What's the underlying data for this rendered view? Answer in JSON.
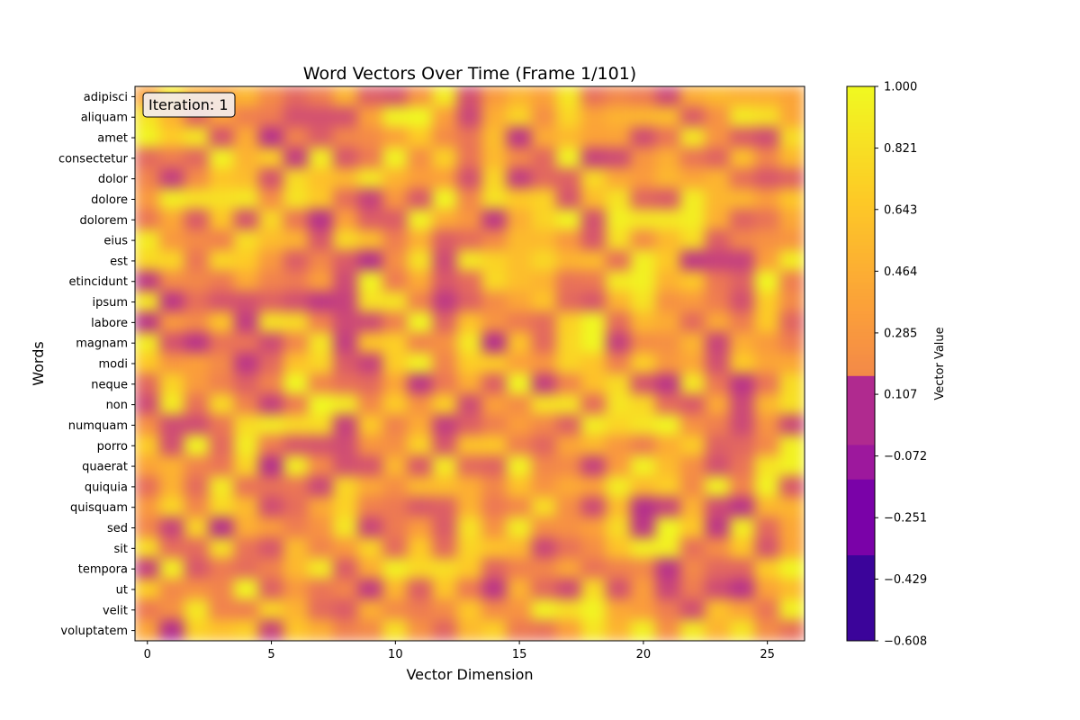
{
  "chart_data": {
    "type": "heatmap",
    "title": "Word Vectors Over Time (Frame 1/101)",
    "xlabel": "Vector Dimension",
    "ylabel": "Words",
    "x_ticks": [
      "0",
      "5",
      "10",
      "15",
      "20",
      "25"
    ],
    "x_tick_values": [
      0,
      5,
      10,
      15,
      20,
      25
    ],
    "xlim": [
      -0.5,
      26.5
    ],
    "words": [
      "adipisci",
      "aliquam",
      "amet",
      "consectetur",
      "dolor",
      "dolore",
      "dolorem",
      "eius",
      "est",
      "etincidunt",
      "ipsum",
      "labore",
      "magnam",
      "modi",
      "neque",
      "non",
      "numquam",
      "porro",
      "quaerat",
      "quiquia",
      "quisquam",
      "sed",
      "sit",
      "tempora",
      "ut",
      "velit",
      "voluptatem"
    ],
    "dimensions": 27,
    "colorbar": {
      "label": "Vector Value",
      "min": -0.608,
      "max": 1.0,
      "ticks": [
        "1.000",
        "0.821",
        "0.643",
        "0.464",
        "0.285",
        "0.107",
        "−0.072",
        "−0.251",
        "−0.429",
        "−0.608"
      ],
      "tick_values": [
        1.0,
        0.821,
        0.643,
        0.464,
        0.285,
        0.107,
        -0.072,
        -0.251,
        -0.429,
        -0.608
      ]
    },
    "annotation": "Iteration: 1",
    "colormap": "plasma",
    "value_note": "cell values estimated from colors; most in 0.1-1.0"
  },
  "colors": {
    "plasma_stops": [
      "#0d0887",
      "#46039f",
      "#7201a8",
      "#9c179e",
      "#bd3786",
      "#d8576b",
      "#ed7953",
      "#fb9f3a",
      "#fdca26",
      "#f0f921"
    ],
    "colorbar_steps": [
      "#3b049a",
      "#7a02a8",
      "#9d189d",
      "#b02a8f"
    ]
  }
}
